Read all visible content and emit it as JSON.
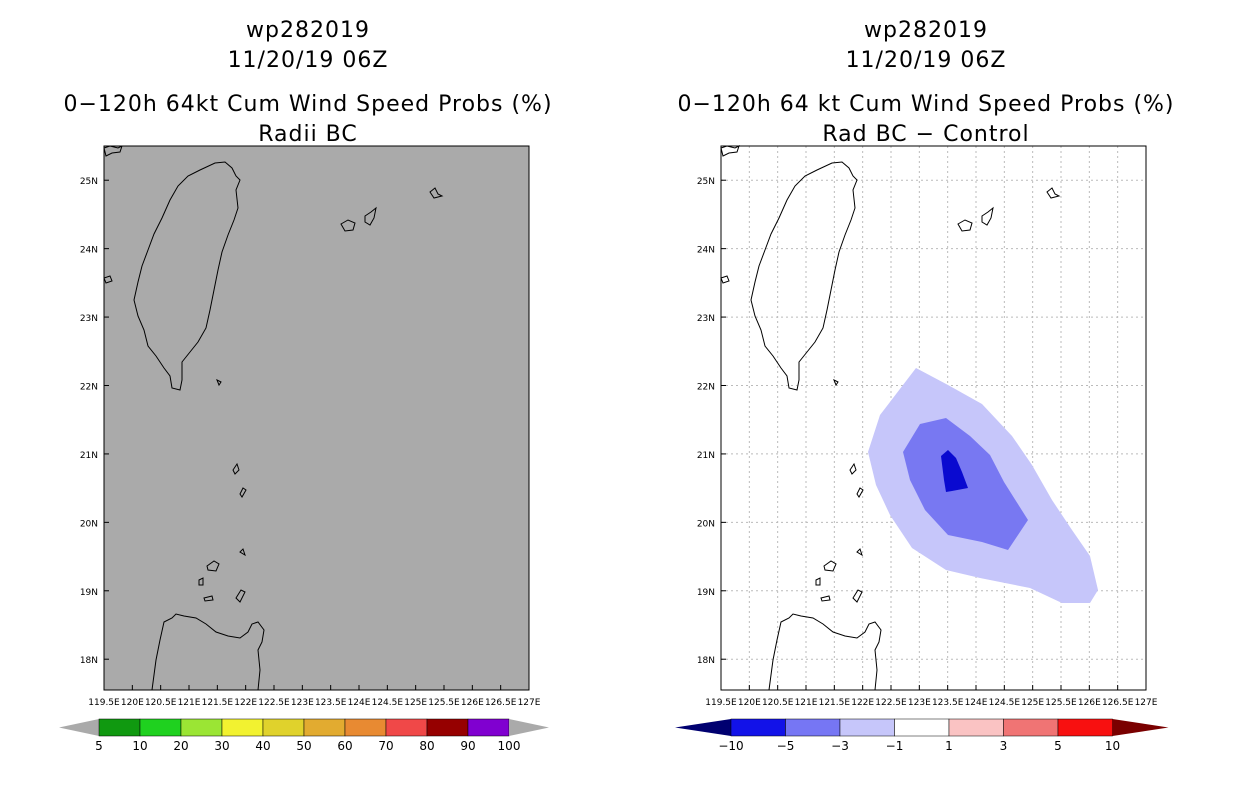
{
  "left_panel": {
    "storm_id": "wp282019",
    "datetime": "11/20/19 06Z",
    "product": "0−120h 64kt Cum Wind Speed Probs (%)",
    "subtitle": "Radii BC",
    "background_color": "#aaaaaa",
    "legend": {
      "labels": [
        "5",
        "10",
        "20",
        "30",
        "40",
        "50",
        "60",
        "70",
        "80",
        "90",
        "100"
      ],
      "colors": [
        "#109910",
        "#1fd11f",
        "#9be534",
        "#f2f230",
        "#e0d22c",
        "#e2ab30",
        "#e88a32",
        "#f04848",
        "#960000",
        "#8000d0"
      ],
      "end_color": "#aaaaaa"
    }
  },
  "right_panel": {
    "storm_id": "wp282019",
    "datetime": "11/20/19 06Z",
    "product": "0−120h 64 kt Cum Wind Speed Probs (%)",
    "subtitle": "Rad BC − Control",
    "background_color": "#ffffff",
    "contours": [
      {
        "level_range": [
          -3,
          -1
        ],
        "color": "#c6c6fa"
      },
      {
        "level_range": [
          -5,
          -3
        ],
        "color": "#7878f2"
      },
      {
        "level_range": [
          -10,
          -5
        ],
        "color": "#0a0ad0"
      }
    ],
    "legend": {
      "labels": [
        "−10",
        "−5",
        "−3",
        "−1",
        "1",
        "3",
        "5",
        "10"
      ],
      "colors": [
        "#1212e8",
        "#7676f4",
        "#c6c6fa",
        "#ffffff",
        "#fac3c3",
        "#f07474",
        "#f81010"
      ],
      "left_end_color": "#000070",
      "right_end_color": "#7a0000"
    }
  },
  "axes": {
    "lon_ticks": [
      "119.5E",
      "120E",
      "120.5E",
      "121E",
      "121.5E",
      "122E",
      "122.5E",
      "123E",
      "123.5E",
      "124E",
      "124.5E",
      "125E",
      "125.5E",
      "126E",
      "126.5E",
      "127E"
    ],
    "lat_ticks": [
      "25N",
      "24N",
      "23N",
      "22N",
      "21N",
      "20N",
      "19N",
      "18N"
    ],
    "lon_range": [
      119.5,
      127
    ],
    "lat_range": [
      17.55,
      25.5
    ]
  }
}
